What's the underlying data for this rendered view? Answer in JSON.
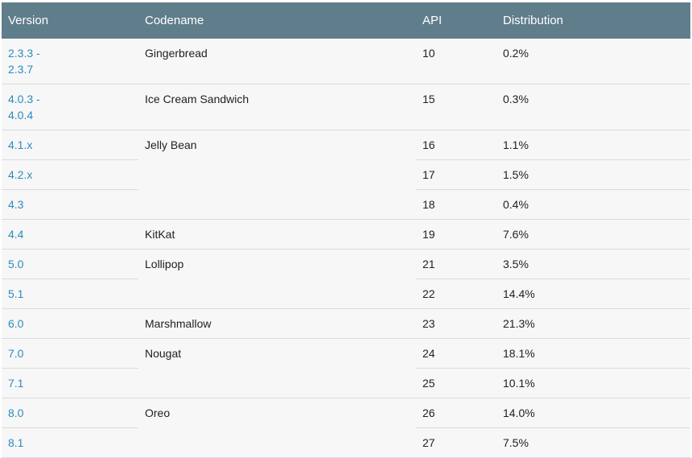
{
  "headers": {
    "version": "Version",
    "codename": "Codename",
    "api": "API",
    "distribution": "Distribution"
  },
  "rows": [
    {
      "version_a": "2.3.3 -",
      "version_b": "2.3.7",
      "codename": "Gingerbread",
      "api": "10",
      "dist": "0.2%"
    },
    {
      "version_a": "4.0.3 -",
      "version_b": "4.0.4",
      "codename": "Ice Cream Sandwich",
      "api": "15",
      "dist": "0.3%"
    },
    {
      "version": "4.1.x",
      "codename": "Jelly Bean",
      "api": "16",
      "dist": "1.1%"
    },
    {
      "version": "4.2.x",
      "api": "17",
      "dist": "1.5%"
    },
    {
      "version": "4.3",
      "api": "18",
      "dist": "0.4%"
    },
    {
      "version": "4.4",
      "codename": "KitKat",
      "api": "19",
      "dist": "7.6%"
    },
    {
      "version": "5.0",
      "codename": "Lollipop",
      "api": "21",
      "dist": "3.5%"
    },
    {
      "version": "5.1",
      "api": "22",
      "dist": "14.4%"
    },
    {
      "version": "6.0",
      "codename": "Marshmallow",
      "api": "23",
      "dist": "21.3%"
    },
    {
      "version": "7.0",
      "codename": "Nougat",
      "api": "24",
      "dist": "18.1%"
    },
    {
      "version": "7.1",
      "api": "25",
      "dist": "10.1%"
    },
    {
      "version": "8.0",
      "codename": "Oreo",
      "api": "26",
      "dist": "14.0%"
    },
    {
      "version": "8.1",
      "api": "27",
      "dist": "7.5%"
    }
  ],
  "colors": {
    "header_bg": "#607d8b",
    "link": "#2d8bbd",
    "row_bg": "#f7f7f7",
    "border": "#dadce0"
  }
}
